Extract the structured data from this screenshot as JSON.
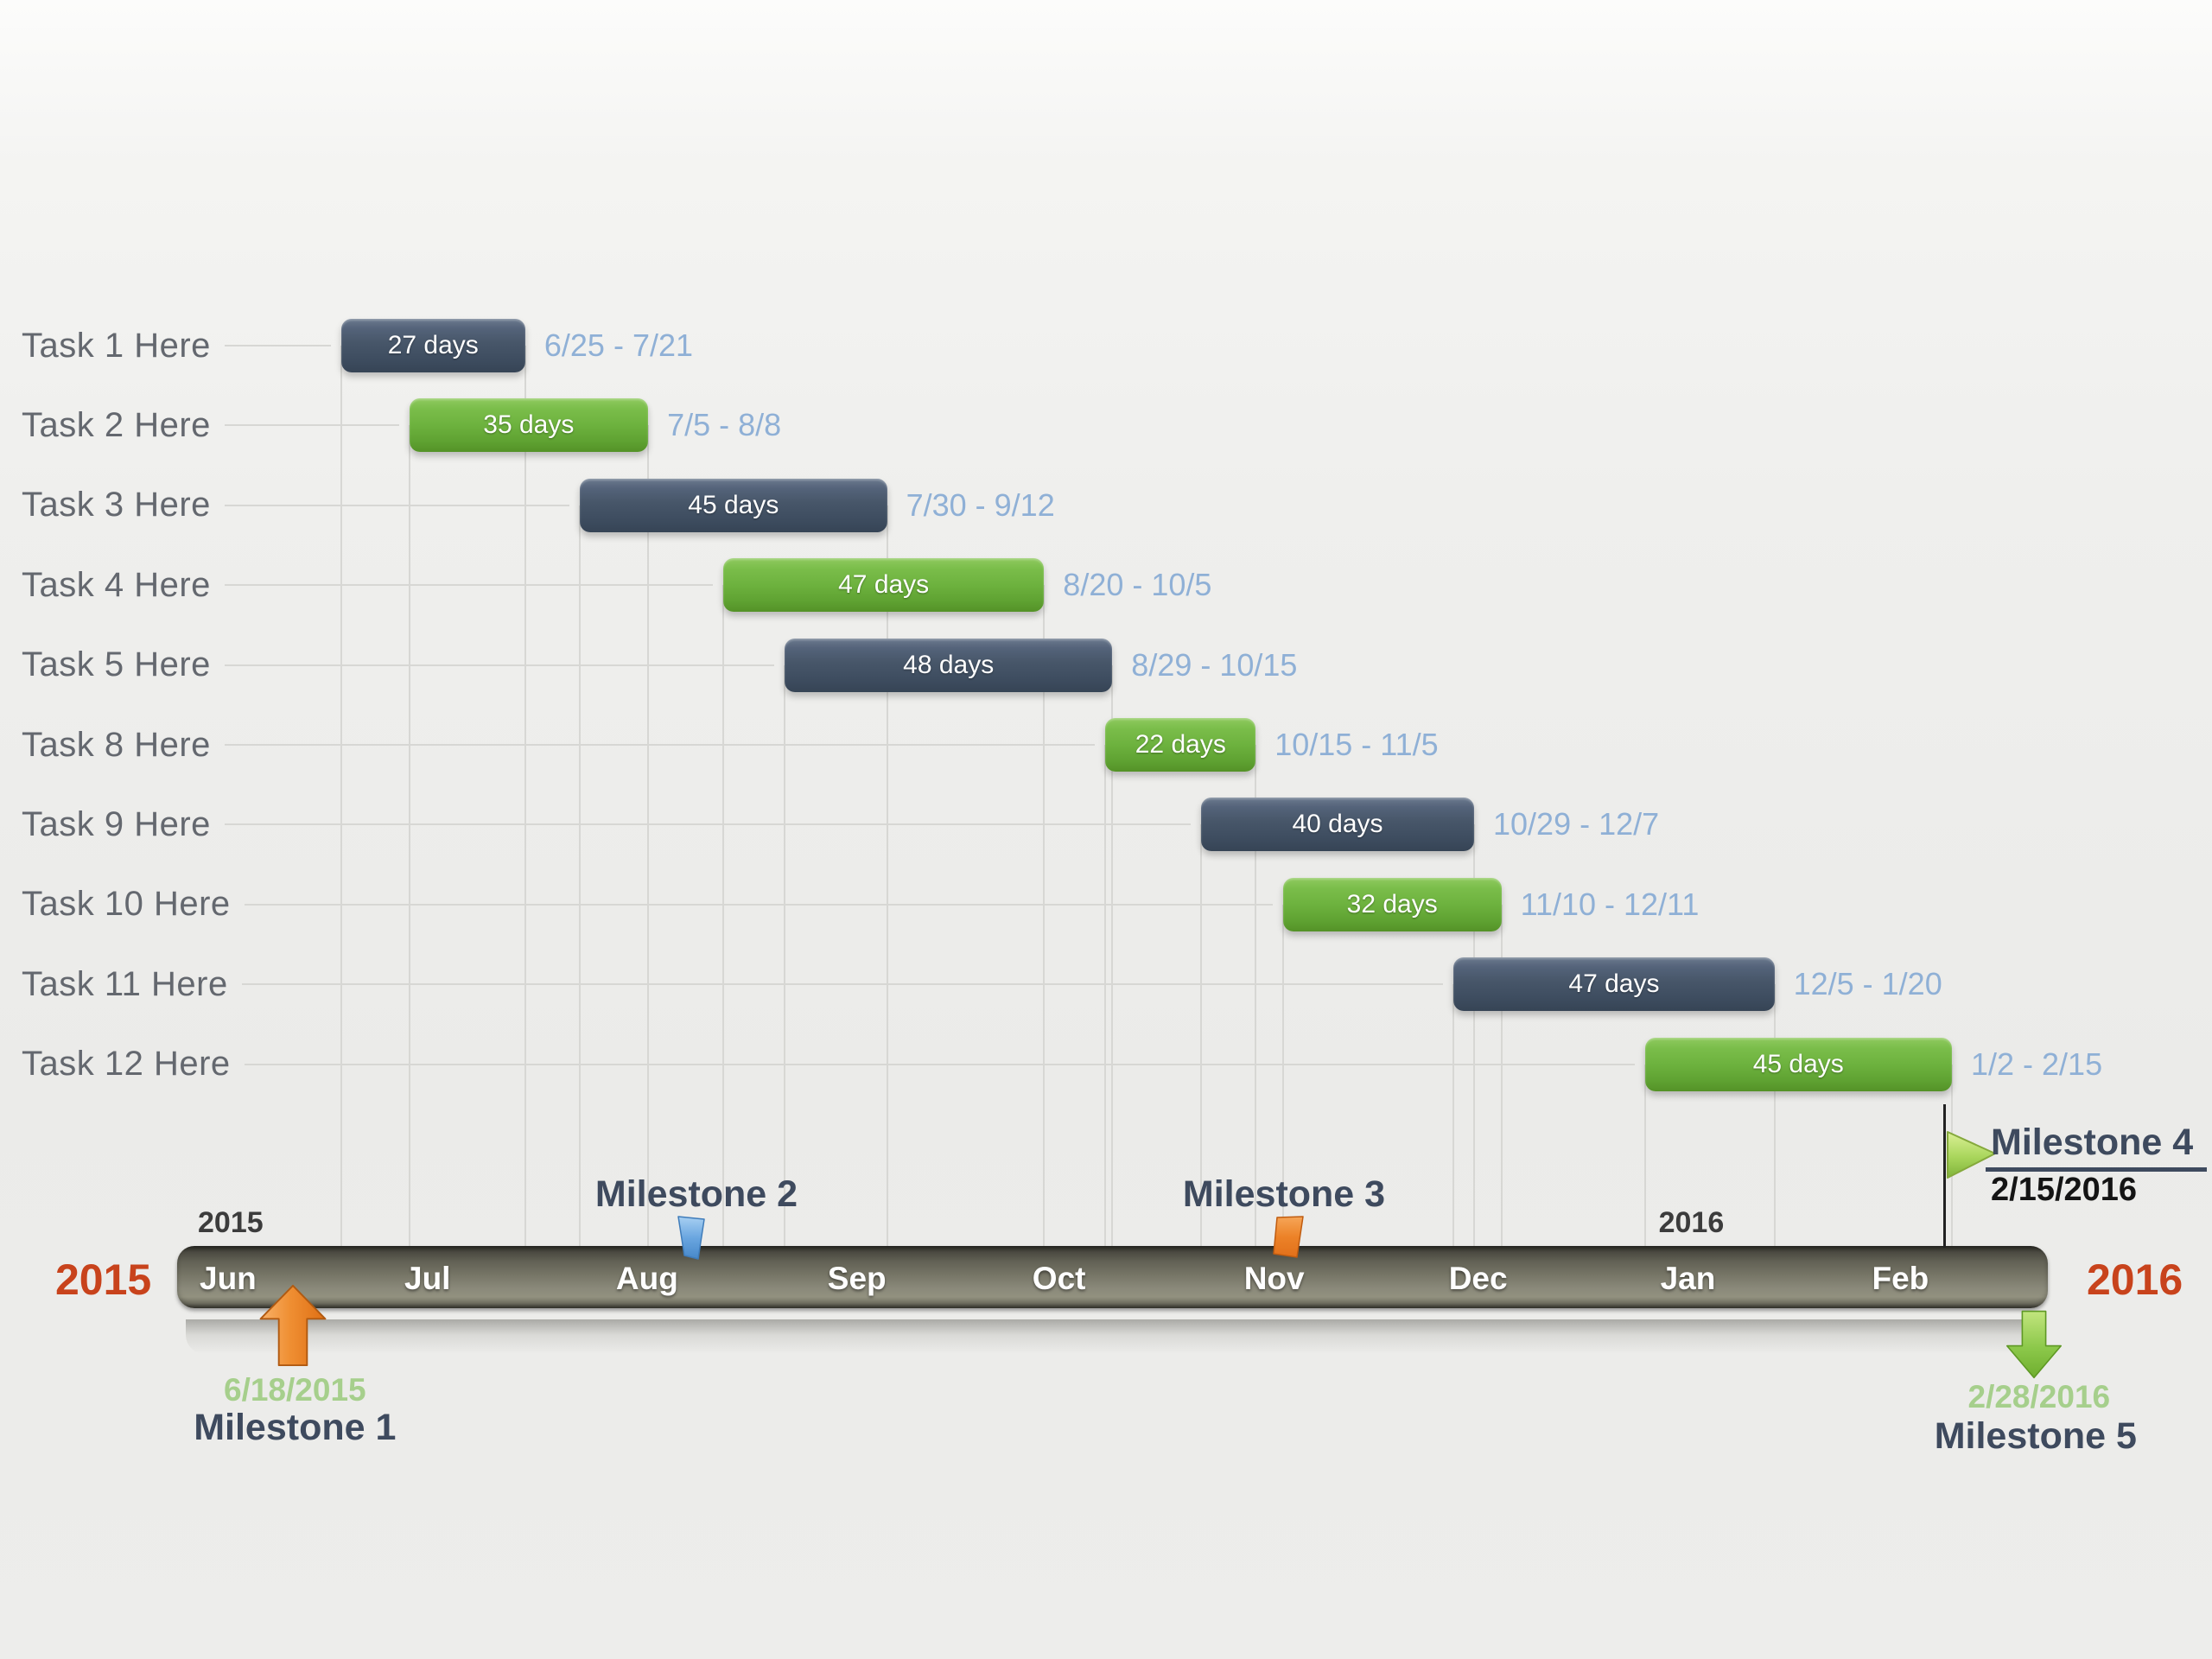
{
  "chart_data": {
    "type": "bar",
    "subtype": "gantt-timeline",
    "timeline": {
      "months": [
        "Jun",
        "Jul",
        "Aug",
        "Sep",
        "Oct",
        "Nov",
        "Dec",
        "Jan",
        "Feb"
      ],
      "range_start": "2015-06-01",
      "range_end": "2016-03-01",
      "year_left_label": "2015",
      "year_right_label": "2016",
      "year_small_2015": "2015",
      "year_small_2016": "2016"
    },
    "tasks": [
      {
        "label": "Task 1 Here",
        "duration_label": "27 days",
        "duration_days": 27,
        "date_range": "6/25 - 7/21",
        "start": "2015-06-25",
        "color": "slate"
      },
      {
        "label": "Task 2 Here",
        "duration_label": "35 days",
        "duration_days": 35,
        "date_range": "7/5 - 8/8",
        "start": "2015-07-05",
        "color": "green"
      },
      {
        "label": "Task 3 Here",
        "duration_label": "45 days",
        "duration_days": 45,
        "date_range": "7/30 - 9/12",
        "start": "2015-07-30",
        "color": "slate"
      },
      {
        "label": "Task 4 Here",
        "duration_label": "47 days",
        "duration_days": 47,
        "date_range": "8/20 - 10/5",
        "start": "2015-08-20",
        "color": "green"
      },
      {
        "label": "Task 5 Here",
        "duration_label": "48 days",
        "duration_days": 48,
        "date_range": "8/29 - 10/15",
        "start": "2015-08-29",
        "color": "slate"
      },
      {
        "label": "Task 8 Here",
        "duration_label": "22 days",
        "duration_days": 22,
        "date_range": "10/15 - 11/5",
        "start": "2015-10-15",
        "color": "green"
      },
      {
        "label": "Task 9 Here",
        "duration_label": "40 days",
        "duration_days": 40,
        "date_range": "10/29 - 12/7",
        "start": "2015-10-29",
        "color": "slate"
      },
      {
        "label": "Task 10 Here",
        "duration_label": "32 days",
        "duration_days": 32,
        "date_range": "11/10 - 12/11",
        "start": "2015-11-10",
        "color": "green"
      },
      {
        "label": "Task 11 Here",
        "duration_label": "47 days",
        "duration_days": 47,
        "date_range": "12/5 - 1/20",
        "start": "2015-12-05",
        "color": "slate"
      },
      {
        "label": "Task 12 Here",
        "duration_label": "45 days",
        "duration_days": 45,
        "date_range": "1/2 - 2/15",
        "start": "2016-01-02",
        "color": "green"
      }
    ],
    "milestones": [
      {
        "name": "Milestone 1",
        "date_label": "6/18/2015",
        "marker": "orange-up-arrow",
        "position": "below-timeline"
      },
      {
        "name": "Milestone 2",
        "marker": "blue-pennant",
        "position": "above-timeline"
      },
      {
        "name": "Milestone 3",
        "marker": "orange-pennant",
        "position": "above-timeline"
      },
      {
        "name": "Milestone 4",
        "date_label": "2/15/2016",
        "marker": "green-flag",
        "position": "above-timeline"
      },
      {
        "name": "Milestone 5",
        "date_label": "2/28/2016",
        "marker": "green-down-arrow",
        "position": "below-timeline"
      }
    ],
    "colors": {
      "slate_bar": "#46566b",
      "green_bar": "#6fb53f",
      "date_text": "#8fb0d6",
      "task_label_text": "#64686f",
      "year_accent": "#c8431c",
      "milestone_name_text": "#3e4a5e",
      "milestone_date_green": "#a6cf8c",
      "milestone4_date_text": "#141414",
      "timeline_base": "#73725f"
    }
  }
}
